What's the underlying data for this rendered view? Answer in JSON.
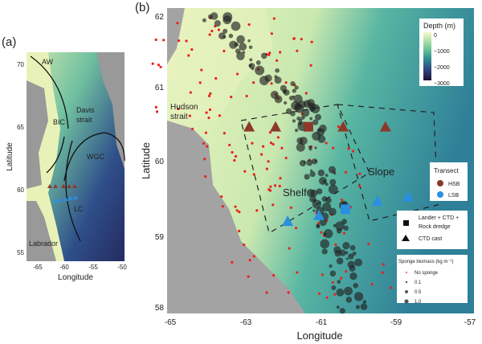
{
  "panel_a": {
    "label": "(a)",
    "xlabel": "Longitude",
    "ylabel": "Latitude",
    "xticks": [
      "-65",
      "-60",
      "-55",
      "-50"
    ],
    "yticks": [
      "70",
      "65",
      "60",
      "55"
    ],
    "annotations": [
      "AW",
      "Davis",
      "strait",
      "BIC",
      "WGC",
      "LC",
      "Labrador"
    ]
  },
  "panel_b": {
    "label": "(b)",
    "xlabel": "Longitude",
    "ylabel": "Latitude",
    "xticks": [
      "-65",
      "-63",
      "-61",
      "-59",
      "-57"
    ],
    "yticks": [
      "62",
      "61",
      "60",
      "59",
      "58"
    ],
    "annotations": {
      "hudson1": "Hudson",
      "hudson2": "strait",
      "shelf": "Shelf",
      "slope": "Slope"
    },
    "stations": [
      {
        "transect": "HSB",
        "type": "CTD cast",
        "lon": -62.87,
        "lat": 60.49
      },
      {
        "transect": "HSB",
        "type": "CTD cast",
        "lon": -62.17,
        "lat": 60.49
      },
      {
        "transect": "HSB",
        "type": "Lander + CTD + Rock dredge",
        "lon": -61.3,
        "lat": 60.49
      },
      {
        "transect": "HSB",
        "type": "CTD cast",
        "lon": -60.38,
        "lat": 60.49
      },
      {
        "transect": "HSB",
        "type": "CTD cast",
        "lon": -59.26,
        "lat": 60.49
      },
      {
        "transect": "LSB",
        "type": "CTD cast",
        "lon": -61.85,
        "lat": 59.22
      },
      {
        "transect": "LSB",
        "type": "CTD cast",
        "lon": -61.02,
        "lat": 59.3
      },
      {
        "transect": "LSB",
        "type": "Lander + CTD + Rock dredge",
        "lon": -60.32,
        "lat": 59.38
      },
      {
        "transect": "LSB",
        "type": "CTD cast",
        "lon": -59.47,
        "lat": 59.49
      },
      {
        "transect": "LSB",
        "type": "CTD cast",
        "lon": -58.66,
        "lat": 59.55
      }
    ]
  },
  "legend": {
    "depth": {
      "title": "Depth (m)",
      "ticks": [
        "0",
        "−1000",
        "−2000",
        "−3000"
      ],
      "colors": [
        "#f7f7c8",
        "#7fcf9a",
        "#2f8f96",
        "#2e3f7a",
        "#1a1030"
      ]
    },
    "transect": {
      "title": "Transect",
      "items": [
        {
          "label": "HSB",
          "color": "#8b3a2a"
        },
        {
          "label": "LSB",
          "color": "#2b8fe0"
        }
      ]
    },
    "gear": {
      "items": [
        {
          "label1": "Lander + CTD +",
          "label2": "Rock dredge",
          "icon": "square"
        },
        {
          "label1": "CTD cast",
          "icon": "triangle"
        }
      ]
    },
    "biomass": {
      "title": "Sponge biomass (kg m⁻¹)",
      "items": [
        "No sponge",
        "0.1",
        "0.5",
        "1.0"
      ]
    }
  }
}
